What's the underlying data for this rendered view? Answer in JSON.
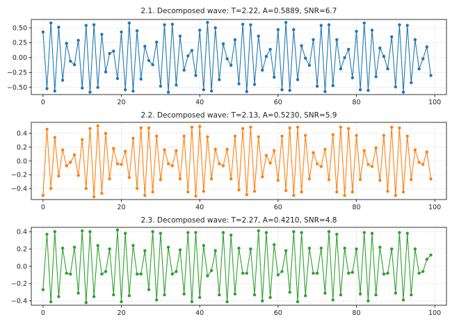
{
  "chart_data": [
    {
      "type": "line",
      "title": "2.1. Decomposed wave: T=2.22, A=0.5889, SNR=6.7",
      "xlabel": "",
      "ylabel": "",
      "xlim": [
        -3,
        103
      ],
      "ylim": [
        -0.62,
        0.64
      ],
      "xticks": [
        0,
        20,
        40,
        60,
        80,
        100
      ],
      "yticks": [
        -0.5,
        -0.25,
        0.0,
        0.25,
        0.5
      ],
      "ytick_labels": [
        "−0.50",
        "−0.25",
        "0.00",
        "0.25",
        "0.50"
      ],
      "grid": true,
      "series": [
        {
          "color": "#1f77b4",
          "x": [
            0,
            1,
            2,
            3,
            4,
            5,
            6,
            7,
            8,
            9,
            10,
            11,
            12,
            13,
            14,
            15,
            16,
            17,
            18,
            19,
            20,
            21,
            22,
            23,
            24,
            25,
            26,
            27,
            28,
            29,
            30,
            31,
            32,
            33,
            34,
            35,
            36,
            37,
            38,
            39,
            40,
            41,
            42,
            43,
            44,
            45,
            46,
            47,
            48,
            49,
            50,
            51,
            52,
            53,
            54,
            55,
            56,
            57,
            58,
            59,
            60,
            61,
            62,
            63,
            64,
            65,
            66,
            67,
            68,
            69,
            70,
            71,
            72,
            73,
            74,
            75,
            76,
            77,
            78,
            79,
            80,
            81,
            82,
            83,
            84,
            85,
            86,
            87,
            88,
            89,
            90,
            91,
            92,
            93,
            94,
            95,
            96,
            97,
            98,
            99
          ],
          "y": [
            0.43,
            -0.52,
            0.58,
            -0.56,
            0.51,
            -0.38,
            0.24,
            -0.06,
            -0.12,
            0.29,
            -0.51,
            0.54,
            -0.58,
            0.55,
            -0.5,
            0.39,
            -0.24,
            0.07,
            0.11,
            -0.35,
            0.43,
            -0.54,
            0.58,
            -0.56,
            0.45,
            -0.36,
            0.19,
            -0.05,
            -0.12,
            0.26,
            -0.48,
            0.55,
            -0.58,
            0.56,
            -0.46,
            0.36,
            -0.21,
            0.03,
            0.12,
            -0.3,
            0.46,
            -0.54,
            0.59,
            -0.56,
            0.5,
            -0.37,
            0.23,
            -0.02,
            -0.13,
            0.3,
            -0.44,
            0.56,
            -0.57,
            0.55,
            -0.45,
            0.36,
            -0.21,
            0.02,
            0.14,
            -0.33,
            0.47,
            -0.54,
            0.59,
            -0.55,
            0.47,
            -0.37,
            0.2,
            -0.01,
            -0.13,
            0.3,
            -0.48,
            0.54,
            -0.57,
            0.55,
            -0.47,
            0.3,
            -0.19,
            0.0,
            0.14,
            -0.34,
            0.44,
            -0.54,
            0.58,
            -0.55,
            0.46,
            -0.32,
            0.16,
            0.02,
            -0.19,
            0.35,
            -0.49,
            0.55,
            -0.58,
            0.54,
            -0.42,
            0.3,
            -0.19,
            -0.02,
            0.18,
            -0.3
          ]
        }
      ]
    },
    {
      "type": "line",
      "title": "2.2. Decomposed wave: T=2.13, A=0.5230, SNR=5.9",
      "xlabel": "",
      "ylabel": "",
      "xlim": [
        -3,
        103
      ],
      "ylim": [
        -0.56,
        0.56
      ],
      "xticks": [
        0,
        20,
        40,
        60,
        80,
        100
      ],
      "yticks": [
        -0.4,
        -0.2,
        0.0,
        0.2,
        0.4
      ],
      "ytick_labels": [
        "−0.4",
        "−0.2",
        "0.0",
        "0.2",
        "0.4"
      ],
      "grid": true,
      "series": [
        {
          "color": "#ff7f0e",
          "x": [
            0,
            1,
            2,
            3,
            4,
            5,
            6,
            7,
            8,
            9,
            10,
            11,
            12,
            13,
            14,
            15,
            16,
            17,
            18,
            19,
            20,
            21,
            22,
            23,
            24,
            25,
            26,
            27,
            28,
            29,
            30,
            31,
            32,
            33,
            34,
            35,
            36,
            37,
            38,
            39,
            40,
            41,
            42,
            43,
            44,
            45,
            46,
            47,
            48,
            49,
            50,
            51,
            52,
            53,
            54,
            55,
            56,
            57,
            58,
            59,
            60,
            61,
            62,
            63,
            64,
            65,
            66,
            67,
            68,
            69,
            70,
            71,
            72,
            73,
            74,
            75,
            76,
            77,
            78,
            79,
            80,
            81,
            82,
            83,
            84,
            85,
            86,
            87,
            88,
            89,
            90,
            91,
            92,
            93,
            94,
            95,
            96,
            97,
            98,
            99
          ],
          "y": [
            -0.5,
            0.46,
            -0.4,
            0.34,
            -0.22,
            0.16,
            -0.07,
            -0.02,
            0.09,
            -0.21,
            0.31,
            -0.4,
            0.47,
            -0.52,
            0.51,
            -0.47,
            0.4,
            -0.26,
            0.18,
            -0.04,
            -0.05,
            0.14,
            -0.24,
            0.33,
            -0.4,
            0.48,
            -0.5,
            0.48,
            -0.45,
            0.36,
            -0.27,
            0.16,
            -0.04,
            -0.07,
            0.15,
            -0.26,
            0.36,
            -0.45,
            0.49,
            -0.51,
            0.5,
            -0.44,
            0.35,
            -0.26,
            0.17,
            -0.04,
            -0.07,
            0.17,
            -0.26,
            0.36,
            -0.42,
            0.47,
            -0.49,
            0.49,
            -0.44,
            0.35,
            -0.23,
            0.08,
            -0.03,
            0.15,
            -0.28,
            0.36,
            -0.43,
            0.48,
            -0.5,
            0.49,
            -0.45,
            0.37,
            -0.26,
            0.12,
            -0.04,
            -0.08,
            0.17,
            -0.27,
            0.38,
            -0.45,
            0.49,
            -0.5,
            0.47,
            -0.45,
            0.37,
            -0.27,
            0.15,
            -0.05,
            -0.08,
            0.19,
            -0.28,
            0.37,
            -0.44,
            0.49,
            -0.5,
            0.48,
            -0.45,
            0.36,
            -0.27,
            0.16,
            -0.02,
            -0.05,
            0.13,
            -0.26
          ]
        }
      ]
    },
    {
      "type": "line",
      "title": "2.3. Decomposed wave: T=2.27, A=0.4210, SNR=4.8",
      "xlabel": "",
      "ylabel": "",
      "xlim": [
        -3,
        103
      ],
      "ylim": [
        -0.45,
        0.45
      ],
      "xticks": [
        0,
        20,
        40,
        60,
        80,
        100
      ],
      "yticks": [
        -0.4,
        -0.2,
        0.0,
        0.2,
        0.4
      ],
      "ytick_labels": [
        "−0.4",
        "−0.2",
        "0.0",
        "0.2",
        "0.4"
      ],
      "grid": true,
      "series": [
        {
          "color": "#2ca02c",
          "x": [
            0,
            1,
            2,
            3,
            4,
            5,
            6,
            7,
            8,
            9,
            10,
            11,
            12,
            13,
            14,
            15,
            16,
            17,
            18,
            19,
            20,
            21,
            22,
            23,
            24,
            25,
            26,
            27,
            28,
            29,
            30,
            31,
            32,
            33,
            34,
            35,
            36,
            37,
            38,
            39,
            40,
            41,
            42,
            43,
            44,
            45,
            46,
            47,
            48,
            49,
            50,
            51,
            52,
            53,
            54,
            55,
            56,
            57,
            58,
            59,
            60,
            61,
            62,
            63,
            64,
            65,
            66,
            67,
            68,
            69,
            70,
            71,
            72,
            73,
            74,
            75,
            76,
            77,
            78,
            79,
            80,
            81,
            82,
            83,
            84,
            85,
            86,
            87,
            88,
            89,
            90,
            91,
            92,
            93,
            94,
            95,
            96,
            97,
            98,
            99
          ],
          "y": [
            -0.27,
            0.37,
            -0.41,
            0.4,
            -0.35,
            0.21,
            -0.08,
            -0.09,
            0.22,
            -0.31,
            0.41,
            -0.42,
            0.4,
            -0.35,
            0.24,
            -0.09,
            -0.06,
            0.2,
            -0.33,
            0.42,
            -0.41,
            0.38,
            -0.34,
            0.24,
            -0.09,
            -0.09,
            0.18,
            -0.27,
            0.4,
            -0.39,
            0.38,
            -0.33,
            0.22,
            -0.09,
            -0.06,
            0.19,
            -0.32,
            0.39,
            -0.41,
            0.39,
            -0.36,
            0.24,
            -0.11,
            -0.05,
            0.18,
            -0.33,
            0.39,
            -0.41,
            0.36,
            -0.32,
            0.21,
            -0.08,
            -0.08,
            0.2,
            -0.33,
            0.41,
            -0.4,
            0.39,
            -0.36,
            0.25,
            -0.1,
            -0.06,
            0.18,
            -0.3,
            0.4,
            -0.41,
            0.39,
            -0.34,
            0.21,
            -0.08,
            -0.08,
            0.21,
            -0.31,
            0.4,
            -0.39,
            0.37,
            -0.33,
            0.21,
            -0.08,
            -0.07,
            0.2,
            -0.32,
            0.39,
            -0.4,
            0.38,
            -0.33,
            0.22,
            -0.09,
            -0.08,
            0.2,
            -0.31,
            0.39,
            -0.39,
            0.38,
            -0.33,
            0.2,
            -0.08,
            -0.06,
            0.08,
            0.13
          ]
        }
      ]
    }
  ]
}
